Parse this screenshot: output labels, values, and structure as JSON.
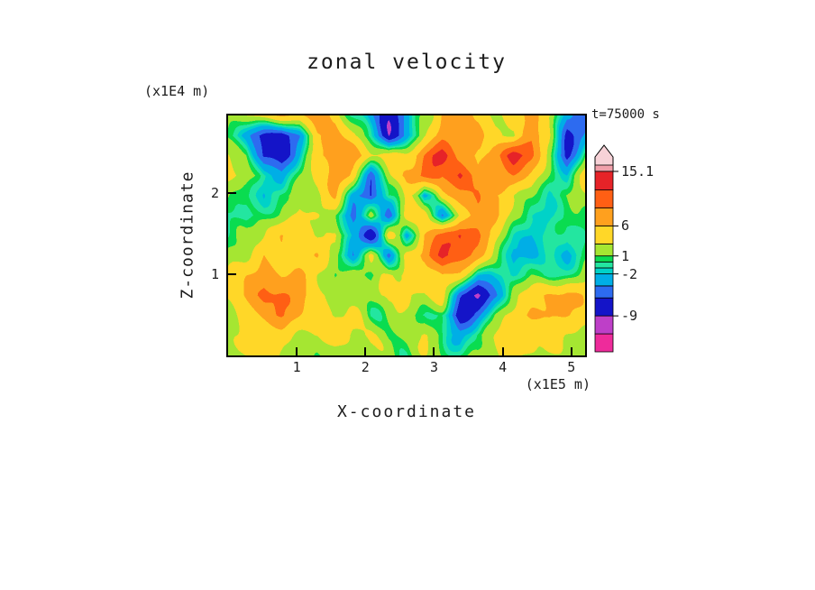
{
  "chart_data": {
    "type": "heatmap",
    "title": "zonal velocity",
    "xlabel": "X-coordinate",
    "x_unit_label": "(x1E5 m)",
    "ylabel": "Z-coordinate",
    "y_unit_label": "(x1E4 m)",
    "time_annotation": "t=75000 s",
    "xlim": [
      0,
      5.2
    ],
    "ylim": [
      0,
      2.95
    ],
    "x_ticks": [
      1,
      2,
      3,
      4,
      5
    ],
    "y_ticks": [
      1,
      2
    ],
    "frame_color": "#000000",
    "text_color": "#1c1c1c",
    "grid_x_range": [
      0,
      5.2
    ],
    "grid_z_range": [
      0,
      2.95
    ],
    "grid_values": [
      [
        2,
        3,
        5,
        6,
        4,
        7,
        5,
        1,
        -4,
        -7,
        -4,
        2,
        6,
        7,
        5,
        3,
        6,
        7,
        3,
        -4,
        -5
      ],
      [
        0,
        -2,
        -6,
        -8,
        -4,
        5,
        8,
        3,
        -2,
        -8,
        -3,
        4,
        8,
        6,
        7,
        4,
        2,
        8,
        4,
        -6,
        -3
      ],
      [
        3,
        1,
        -7,
        -9,
        -2,
        7,
        9,
        7,
        4,
        2,
        5,
        9,
        13,
        9,
        6,
        8,
        13,
        9,
        2,
        -7,
        1
      ],
      [
        5,
        3,
        -2,
        -4,
        1,
        4,
        8,
        5,
        -5,
        3,
        7,
        9,
        8,
        13,
        8,
        7,
        9,
        6,
        1,
        -2,
        3
      ],
      [
        2,
        0,
        -2,
        1,
        3,
        2,
        5,
        -3,
        -7,
        2,
        4,
        -4,
        6,
        7,
        9,
        5,
        3,
        2,
        0,
        1,
        2
      ],
      [
        -1,
        -2,
        0,
        2,
        5,
        3,
        1,
        -5,
        2,
        -6,
        3,
        5,
        -3,
        4,
        8,
        6,
        2,
        -1,
        -2,
        0,
        1
      ],
      [
        0,
        1,
        3,
        6,
        4,
        2,
        4,
        -2,
        -7,
        3,
        -4,
        7,
        9,
        13,
        9,
        5,
        0,
        -2,
        -1,
        -2,
        0
      ],
      [
        1,
        3,
        7,
        5,
        3,
        5,
        2,
        -4,
        4,
        -5,
        5,
        8,
        13,
        9,
        7,
        2,
        -2,
        -2,
        -1,
        -2,
        1
      ],
      [
        3,
        6,
        8,
        6,
        7,
        4,
        1,
        3,
        -2,
        3,
        6,
        4,
        7,
        5,
        -2,
        -1,
        -2,
        0,
        -1,
        1,
        3
      ],
      [
        4,
        7,
        9,
        8,
        7,
        5,
        3,
        1,
        2,
        4,
        3,
        2,
        4,
        -6,
        -8,
        -4,
        2,
        4,
        6,
        7,
        5
      ],
      [
        3,
        5,
        7,
        9,
        6,
        4,
        2,
        3,
        1,
        3,
        2,
        1,
        -2,
        -8,
        -5,
        1,
        4,
        7,
        8,
        6,
        4
      ],
      [
        2,
        3,
        4,
        5,
        4,
        3,
        4,
        2,
        3,
        1,
        2,
        3,
        1,
        -2,
        0,
        2,
        5,
        4,
        5,
        3,
        2
      ],
      [
        1,
        2,
        3,
        3,
        2,
        1,
        2,
        3,
        2,
        1,
        0,
        1,
        2,
        1,
        1,
        3,
        4,
        3,
        2,
        1,
        1
      ]
    ],
    "colormap": {
      "levels": [
        -15,
        -12,
        -9,
        -6,
        -4,
        -2,
        -1,
        0,
        1,
        3,
        6,
        9,
        12,
        15.1
      ],
      "colors": [
        "#ee2b9b",
        "#be3fc8",
        "#1414c8",
        "#2d6bf0",
        "#00aee6",
        "#00d2c8",
        "#23e6a0",
        "#0adc50",
        "#a5e632",
        "#ffd728",
        "#ffa01e",
        "#ff5f14",
        "#e62328"
      ],
      "over_color": "#f0a0aa",
      "over_tip_color": "#f7d2d7"
    },
    "colorbar_labels": [
      {
        "value": 15.1,
        "label": "15.1"
      },
      {
        "value": 6,
        "label": "6"
      },
      {
        "value": 1,
        "label": "1"
      },
      {
        "value": -2,
        "label": "-2"
      },
      {
        "value": -9,
        "label": "-9"
      }
    ]
  }
}
